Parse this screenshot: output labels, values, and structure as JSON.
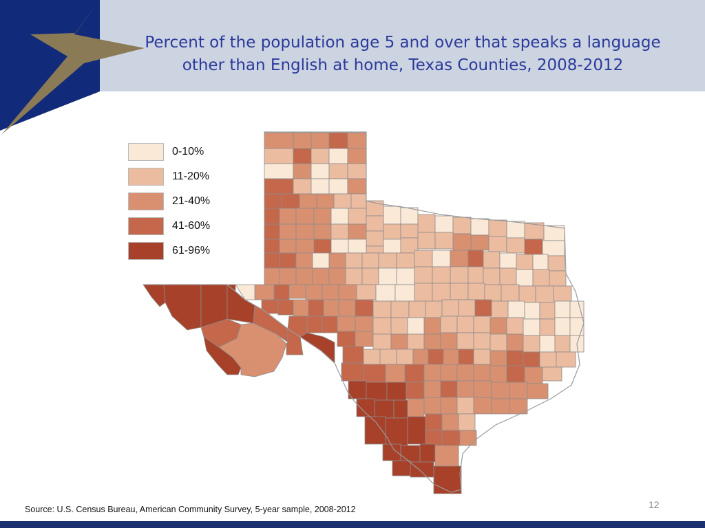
{
  "slide": {
    "title_lines": [
      "Percent of the population age 5 and over that speaks a language",
      "other than English at home, Texas Counties, 2008-2012"
    ],
    "source": "Source: U.S. Census Bureau, American Community Survey, 5-year sample, 2008-2012",
    "page_number": "12"
  },
  "colors": {
    "header_band": "#ccd4e2",
    "logo_navy": "#122a7a",
    "logo_star": "#8a7a56",
    "title_text": "#2b3a9b",
    "county_border": "#8c8c8c"
  },
  "legend": [
    {
      "label": "0-10%",
      "color": "#fbe9d8"
    },
    {
      "label": "11-20%",
      "color": "#ecbca0"
    },
    {
      "label": "21-40%",
      "color": "#d99070"
    },
    {
      "label": "41-60%",
      "color": "#c4674a"
    },
    {
      "label": "61-96%",
      "color": "#a8412a"
    }
  ]
}
